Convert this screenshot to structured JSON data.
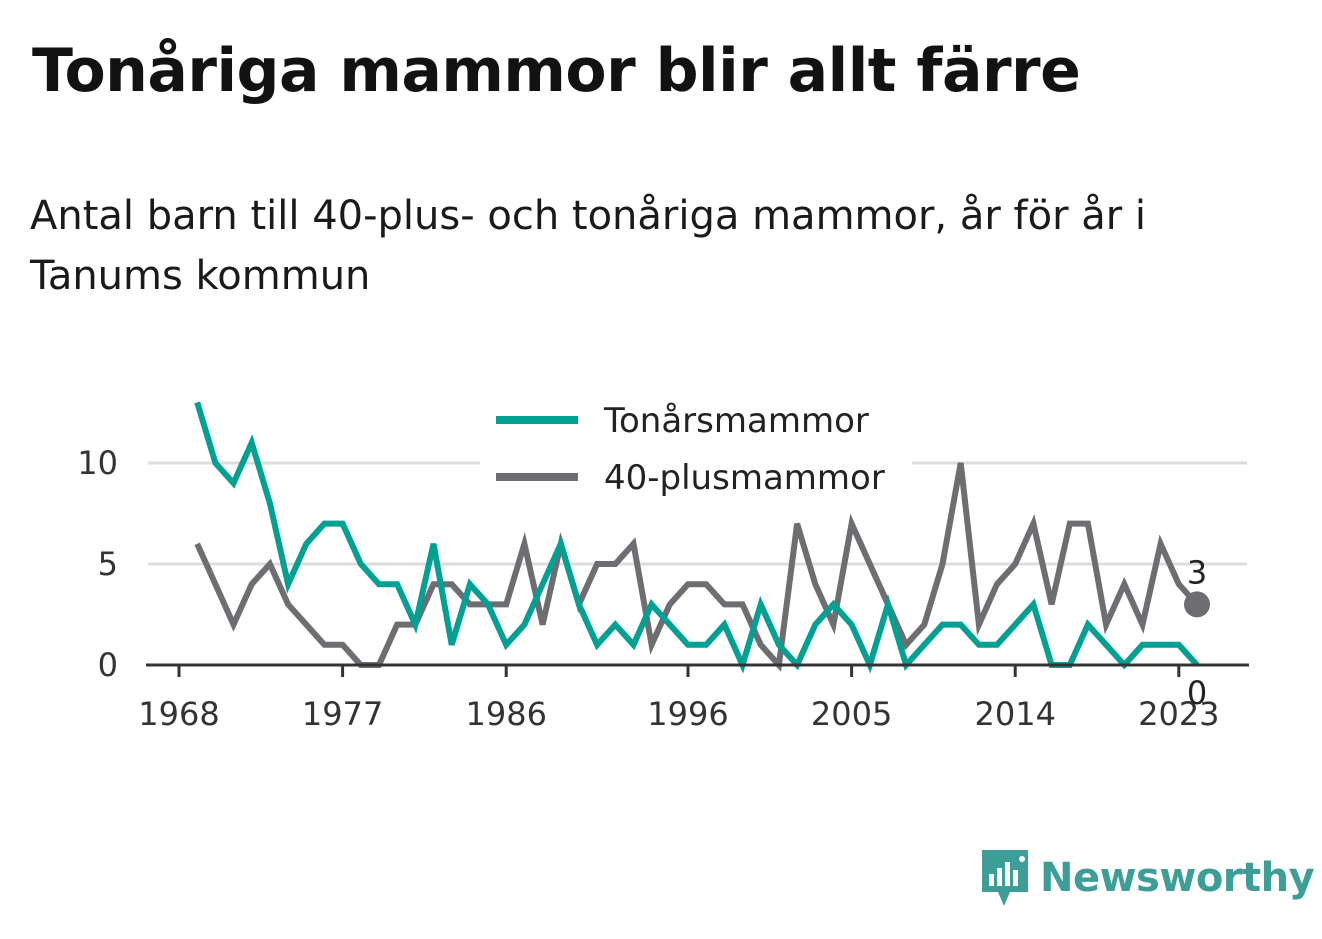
{
  "title": "Tonåriga mammor blir allt färre",
  "subtitle": "Antal barn till 40-plus- och tonåriga mammor, år för år i Tanums kommun",
  "logo_text": "Newsworthy",
  "colors": {
    "teal": "#00a092",
    "gray": "#6d6d72",
    "grid": "#dddddd",
    "axis": "#333333",
    "logo": "#3d9e98"
  },
  "chart_data": {
    "type": "line",
    "x": [
      1969,
      1970,
      1971,
      1972,
      1973,
      1974,
      1975,
      1976,
      1977,
      1978,
      1979,
      1980,
      1981,
      1982,
      1983,
      1984,
      1985,
      1986,
      1987,
      1988,
      1989,
      1990,
      1991,
      1992,
      1993,
      1994,
      1995,
      1996,
      1997,
      1998,
      1999,
      2000,
      2001,
      2002,
      2003,
      2004,
      2005,
      2006,
      2007,
      2008,
      2009,
      2010,
      2011,
      2012,
      2013,
      2014,
      2015,
      2016,
      2017,
      2018,
      2019,
      2020,
      2021,
      2022,
      2023,
      2024
    ],
    "series": [
      {
        "name": "Tonårsmammor",
        "color": "#00a092",
        "values": [
          13,
          10,
          9,
          11,
          8,
          4,
          6,
          7,
          7,
          5,
          4,
          4,
          2,
          6,
          1,
          4,
          3,
          1,
          2,
          4,
          6,
          3,
          1,
          2,
          1,
          3,
          2,
          1,
          1,
          2,
          0,
          3,
          1,
          0,
          2,
          3,
          2,
          0,
          3,
          0,
          1,
          2,
          2,
          1,
          1,
          2,
          3,
          0,
          0,
          2,
          1,
          0,
          1,
          1,
          1,
          0
        ]
      },
      {
        "name": "40-plusmammor",
        "color": "#6d6d72",
        "values": [
          6,
          4,
          2,
          4,
          5,
          3,
          2,
          1,
          1,
          0,
          0,
          2,
          2,
          4,
          4,
          3,
          3,
          3,
          6,
          2,
          6,
          3,
          5,
          5,
          6,
          1,
          3,
          4,
          4,
          3,
          3,
          1,
          0,
          7,
          4,
          2,
          7,
          5,
          3,
          1,
          2,
          5,
          10,
          2,
          4,
          5,
          7,
          3,
          7,
          7,
          2,
          4,
          2,
          6,
          4,
          3
        ]
      }
    ],
    "x_ticks": [
      "1968",
      "1977",
      "1986",
      "1996",
      "2005",
      "2014",
      "2023"
    ],
    "y_ticks": [
      "0",
      "5",
      "10"
    ],
    "ylim": [
      0,
      13
    ],
    "grid": true,
    "legend_placement": "top-center",
    "end_labels": [
      "3",
      "0"
    ]
  }
}
